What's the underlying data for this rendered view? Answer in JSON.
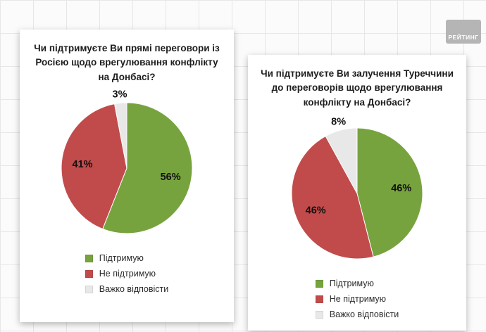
{
  "logo": {
    "text": "РЕЙТИНГ"
  },
  "chart_data": [
    {
      "type": "pie",
      "title": "Чи підтримуєте Ви прямі переговори із Росією щодо врегулювання конфлікту на Донбасі?",
      "start_angle_deg": -90,
      "direction": "clockwise",
      "legend_position": "bottom",
      "slices": [
        {
          "label": "Підтримую",
          "value": 56,
          "value_label": "56%",
          "color": "#77A33E"
        },
        {
          "label": "Не підтримую",
          "value": 41,
          "value_label": "41%",
          "color": "#C14B4B"
        },
        {
          "label": "Важко відповісти",
          "value": 3,
          "value_label": "3%",
          "color": "#E8E8E8"
        }
      ]
    },
    {
      "type": "pie",
      "title": "Чи підтримуєте Ви залучення Туреччини до переговорів щодо врегулювання конфлікту на Донбасі?",
      "start_angle_deg": -90,
      "direction": "clockwise",
      "legend_position": "bottom",
      "slices": [
        {
          "label": "Підтримую",
          "value": 46,
          "value_label": "46%",
          "color": "#77A33E"
        },
        {
          "label": "Не підтримую",
          "value": 46,
          "value_label": "46%",
          "color": "#C14B4B"
        },
        {
          "label": "Важко відповісти",
          "value": 8,
          "value_label": "8%",
          "color": "#E8E8E8"
        }
      ]
    }
  ]
}
